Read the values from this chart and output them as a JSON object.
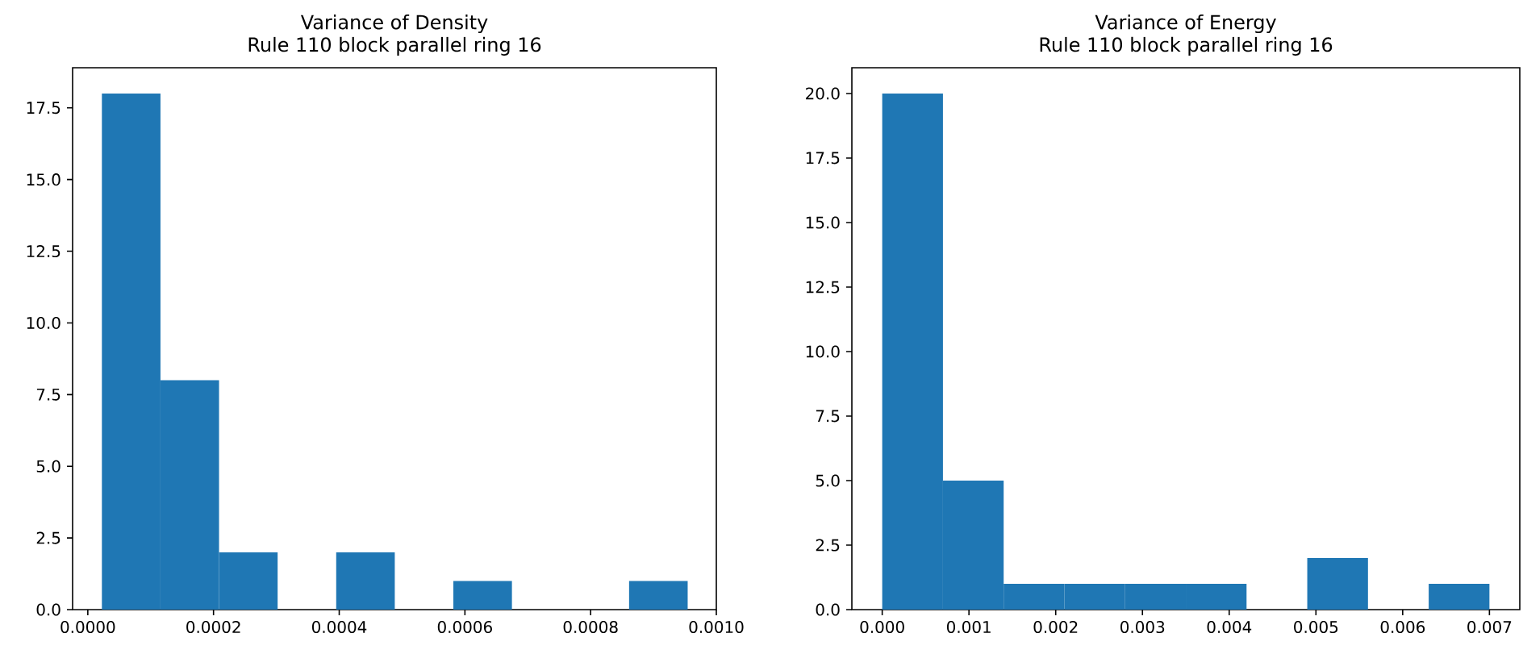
{
  "chart_data": [
    {
      "type": "histogram",
      "title": "Variance of Density",
      "subtitle": "Rule 110 block parallel ring 16",
      "color": "#1f77b4",
      "bins": [
        2.24e-05,
        0.0001156,
        0.0002088,
        0.000302,
        0.0003952,
        0.0004884,
        0.0005816,
        0.0006748,
        0.000768,
        0.0008612,
        0.0009544
      ],
      "values": [
        18,
        8,
        2,
        0,
        2,
        0,
        1,
        0,
        0,
        1
      ],
      "xlim": [
        -2.42e-05,
        0.001
      ],
      "ylim": [
        0,
        18.9
      ],
      "xticks": [
        {
          "value": 0,
          "label": "0.0000"
        },
        {
          "value": 0.0002,
          "label": "0.0002"
        },
        {
          "value": 0.0004,
          "label": "0.0004"
        },
        {
          "value": 0.0006,
          "label": "0.0006"
        },
        {
          "value": 0.0008,
          "label": "0.0008"
        },
        {
          "value": 0.001,
          "label": "0.0010"
        }
      ],
      "yticks": [
        {
          "value": 0,
          "label": "0.0"
        },
        {
          "value": 2.5,
          "label": "2.5"
        },
        {
          "value": 5,
          "label": "5.0"
        },
        {
          "value": 7.5,
          "label": "7.5"
        },
        {
          "value": 10,
          "label": "10.0"
        },
        {
          "value": 12.5,
          "label": "12.5"
        },
        {
          "value": 15,
          "label": "15.0"
        },
        {
          "value": 17.5,
          "label": "17.5"
        }
      ]
    },
    {
      "type": "histogram",
      "title": "Variance of Energy",
      "subtitle": "Rule 110 block parallel ring 16",
      "color": "#1f77b4",
      "bins": [
        0,
        0.0007,
        0.0014,
        0.0021,
        0.0028,
        0.0035,
        0.0042,
        0.0049,
        0.0056,
        0.0063,
        0.007
      ],
      "values": [
        20,
        5,
        1,
        1,
        1,
        1,
        0,
        2,
        0,
        1
      ],
      "xlim": [
        -0.00035,
        0.00735
      ],
      "ylim": [
        0,
        21
      ],
      "xticks": [
        {
          "value": 0,
          "label": "0.000"
        },
        {
          "value": 0.001,
          "label": "0.001"
        },
        {
          "value": 0.002,
          "label": "0.002"
        },
        {
          "value": 0.003,
          "label": "0.003"
        },
        {
          "value": 0.004,
          "label": "0.004"
        },
        {
          "value": 0.005,
          "label": "0.005"
        },
        {
          "value": 0.006,
          "label": "0.006"
        },
        {
          "value": 0.007,
          "label": "0.007"
        }
      ],
      "yticks": [
        {
          "value": 0,
          "label": "0.0"
        },
        {
          "value": 2.5,
          "label": "2.5"
        },
        {
          "value": 5,
          "label": "5.0"
        },
        {
          "value": 7.5,
          "label": "7.5"
        },
        {
          "value": 10,
          "label": "10.0"
        },
        {
          "value": 12.5,
          "label": "12.5"
        },
        {
          "value": 15,
          "label": "15.0"
        },
        {
          "value": 17.5,
          "label": "17.5"
        },
        {
          "value": 20,
          "label": "20.0"
        }
      ]
    }
  ]
}
